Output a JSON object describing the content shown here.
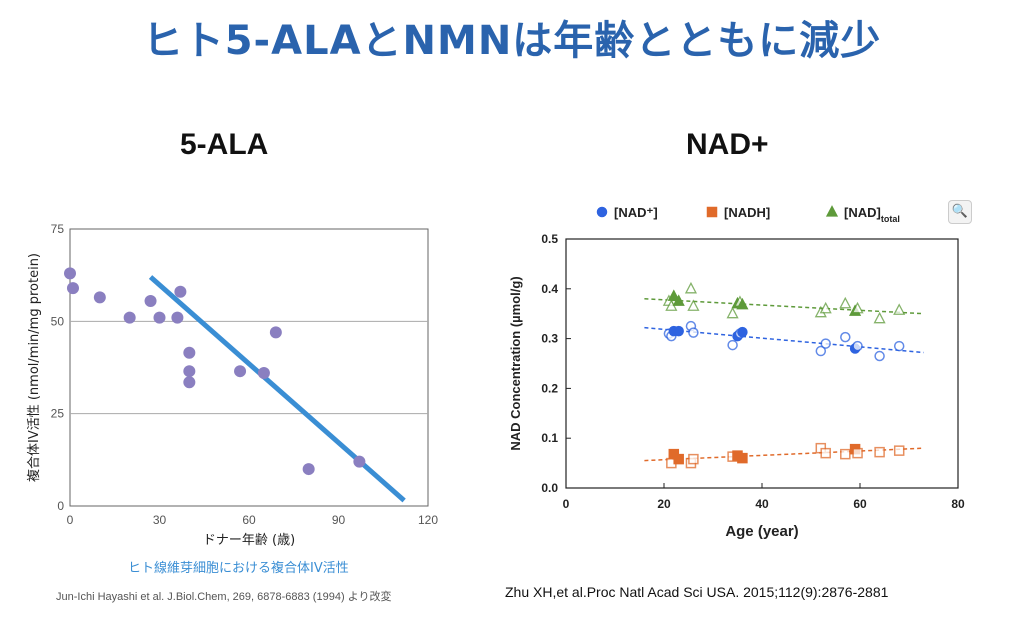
{
  "page": {
    "title": "ヒト5-ALAとNMNは年齢とともに減少",
    "left_heading": "5-ALA",
    "right_heading": "NAD+",
    "left_caption": "ヒト線維芽細胞における複合体IV活性",
    "left_citation": "Jun-Ichi Hayashi et al. J.Biol.Chem, 269, 6878-6883 (1994) より改変",
    "right_citation": "Zhu XH,et al.Proc Natl Acad Sci USA. 2015;112(9):2876-2881",
    "magnifier_icon": "magnifier-icon"
  },
  "chart_data": [
    {
      "type": "scatter",
      "xlabel": "ドナー年齢 (歳)",
      "ylabel": "複合体IV活性 (nmol/min/mg protein)",
      "xlim": [
        0,
        120
      ],
      "ylim": [
        0,
        75
      ],
      "xticks": [
        0,
        30,
        60,
        90,
        120
      ],
      "yticks": [
        0,
        25,
        50,
        75
      ],
      "grid": "horizontal at 25, 50",
      "point_color": "#8a7fc0",
      "line_color": "#3a8ed4",
      "points": [
        {
          "x": 0,
          "y": 63
        },
        {
          "x": 1,
          "y": 59
        },
        {
          "x": 10,
          "y": 56.5
        },
        {
          "x": 20,
          "y": 51
        },
        {
          "x": 27,
          "y": 55.5
        },
        {
          "x": 30,
          "y": 51
        },
        {
          "x": 36,
          "y": 51
        },
        {
          "x": 37,
          "y": 58
        },
        {
          "x": 40,
          "y": 41.5
        },
        {
          "x": 40,
          "y": 36.5
        },
        {
          "x": 40,
          "y": 33.5
        },
        {
          "x": 57,
          "y": 36.5
        },
        {
          "x": 65,
          "y": 36
        },
        {
          "x": 69,
          "y": 47
        },
        {
          "x": 80,
          "y": 10
        },
        {
          "x": 97,
          "y": 12
        }
      ],
      "trend": {
        "x": [
          27,
          112
        ],
        "y": [
          62,
          1.5
        ]
      }
    },
    {
      "type": "scatter",
      "xlabel": "Age (year)",
      "ylabel": "NAD Concentration (µmol/g)",
      "xlim": [
        0,
        80
      ],
      "ylim": [
        0,
        0.5
      ],
      "xticks": [
        0,
        20,
        40,
        60,
        80
      ],
      "yticks": [
        "0.0",
        "0.1",
        "0.2",
        "0.3",
        "0.4",
        "0.5"
      ],
      "legend_placement": "top",
      "series": [
        {
          "name": "[NAD⁺]",
          "color": "#2e63e0",
          "marker": "circle",
          "points": [
            {
              "x": 21,
              "y": 0.31
            },
            {
              "x": 21.5,
              "y": 0.305
            },
            {
              "x": 22,
              "y": 0.315
            },
            {
              "x": 23,
              "y": 0.315
            },
            {
              "x": 25.5,
              "y": 0.325
            },
            {
              "x": 26,
              "y": 0.312
            },
            {
              "x": 34,
              "y": 0.287
            },
            {
              "x": 35,
              "y": 0.305
            },
            {
              "x": 35.5,
              "y": 0.31
            },
            {
              "x": 36,
              "y": 0.313
            },
            {
              "x": 52,
              "y": 0.275
            },
            {
              "x": 53,
              "y": 0.29
            },
            {
              "x": 57,
              "y": 0.303
            },
            {
              "x": 59,
              "y": 0.28
            },
            {
              "x": 59.5,
              "y": 0.285
            },
            {
              "x": 64,
              "y": 0.265
            },
            {
              "x": 68,
              "y": 0.285
            }
          ],
          "trend": {
            "x": [
              16,
              73
            ],
            "y": [
              0.322,
              0.272
            ]
          }
        },
        {
          "name": "[NADH]",
          "color": "#e06a2a",
          "marker": "square",
          "points": [
            {
              "x": 21.5,
              "y": 0.05
            },
            {
              "x": 22,
              "y": 0.068
            },
            {
              "x": 23,
              "y": 0.058
            },
            {
              "x": 25.5,
              "y": 0.05
            },
            {
              "x": 26,
              "y": 0.058
            },
            {
              "x": 34,
              "y": 0.063
            },
            {
              "x": 35,
              "y": 0.065
            },
            {
              "x": 36,
              "y": 0.06
            },
            {
              "x": 52,
              "y": 0.08
            },
            {
              "x": 53,
              "y": 0.07
            },
            {
              "x": 57,
              "y": 0.068
            },
            {
              "x": 59,
              "y": 0.078
            },
            {
              "x": 59.5,
              "y": 0.07
            },
            {
              "x": 64,
              "y": 0.072
            },
            {
              "x": 68,
              "y": 0.075
            }
          ],
          "trend": {
            "x": [
              16,
              73
            ],
            "y": [
              0.055,
              0.08
            ]
          }
        },
        {
          "name": "[NAD]",
          "name_subscript": "total",
          "color": "#5e9a3a",
          "marker": "triangle",
          "points": [
            {
              "x": 21,
              "y": 0.375
            },
            {
              "x": 21.5,
              "y": 0.365
            },
            {
              "x": 22,
              "y": 0.385
            },
            {
              "x": 23,
              "y": 0.375
            },
            {
              "x": 25.5,
              "y": 0.4
            },
            {
              "x": 26,
              "y": 0.365
            },
            {
              "x": 34,
              "y": 0.35
            },
            {
              "x": 35,
              "y": 0.37
            },
            {
              "x": 35.5,
              "y": 0.373
            },
            {
              "x": 36,
              "y": 0.368
            },
            {
              "x": 52,
              "y": 0.352
            },
            {
              "x": 53,
              "y": 0.36
            },
            {
              "x": 57,
              "y": 0.37
            },
            {
              "x": 59,
              "y": 0.355
            },
            {
              "x": 59.5,
              "y": 0.36
            },
            {
              "x": 64,
              "y": 0.34
            },
            {
              "x": 68,
              "y": 0.357
            }
          ],
          "trend": {
            "x": [
              16,
              73
            ],
            "y": [
              0.38,
              0.35
            ]
          }
        }
      ]
    }
  ]
}
